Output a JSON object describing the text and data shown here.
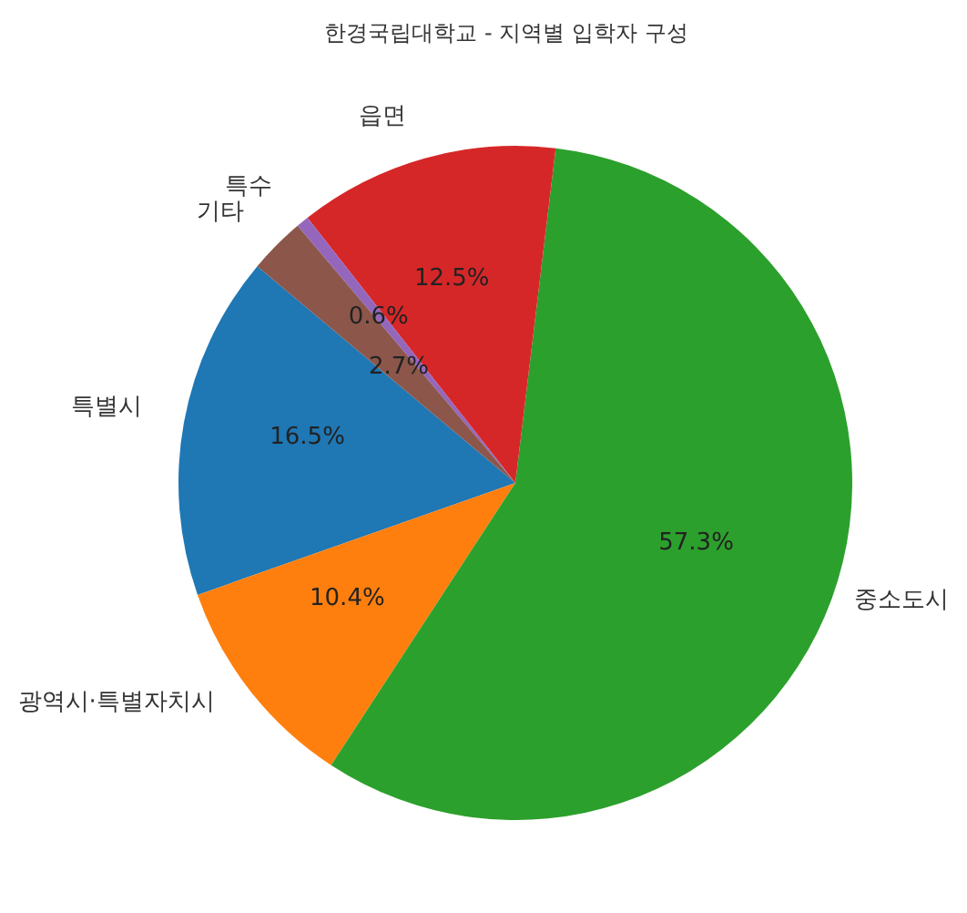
{
  "chart_data": {
    "type": "pie",
    "title": "한경국립대학교 - 지역별 입학자 구성",
    "categories": [
      "특별시",
      "광역시·특별자치시",
      "중소도시",
      "읍면",
      "특수",
      "기타"
    ],
    "values": [
      16.5,
      10.4,
      57.3,
      12.5,
      0.6,
      2.7
    ],
    "colors": [
      "#1f77b4",
      "#ff7f0e",
      "#2ca02c",
      "#d62728",
      "#9467bd",
      "#8c564b"
    ],
    "value_labels": [
      "16.5%",
      "10.4%",
      "57.3%",
      "12.5%",
      "0.6%",
      "2.7%"
    ]
  }
}
